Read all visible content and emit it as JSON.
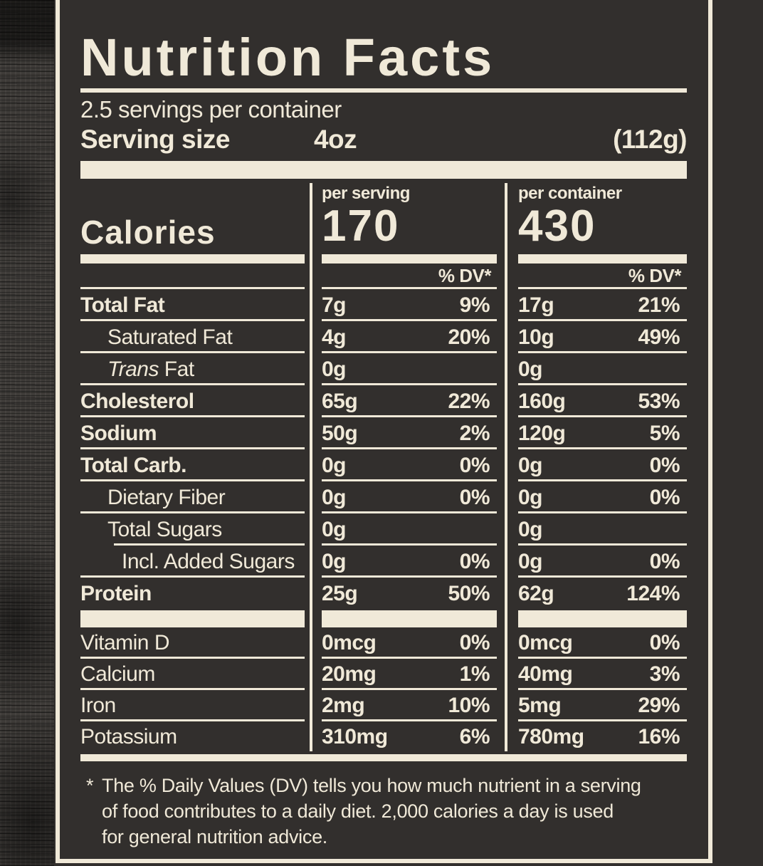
{
  "colors": {
    "background": "#322f2d",
    "cream": "#f0e9d8"
  },
  "header": {
    "title": "Nutrition Facts",
    "servings_per_container": "2.5 servings per container",
    "serving_size_label": "Serving size",
    "serving_size_value": "4oz",
    "serving_size_weight": "(112g)"
  },
  "calories": {
    "label": "Calories",
    "per_serving_label": "per serving",
    "per_serving_value": "170",
    "per_container_label": "per container",
    "per_container_value": "430",
    "dv_header_serving": "% DV*",
    "dv_header_container": "% DV*"
  },
  "nutrients": [
    {
      "name": "Total Fat",
      "serving": "7g",
      "serving_dv": "9%",
      "container": "17g",
      "container_dv": "21%"
    },
    {
      "name": "Saturated Fat",
      "serving": "4g",
      "serving_dv": "20%",
      "container": "10g",
      "container_dv": "49%"
    },
    {
      "name_italic": "Trans",
      "name": " Fat",
      "serving": "0g",
      "serving_dv": "",
      "container": "0g",
      "container_dv": ""
    },
    {
      "name": "Cholesterol",
      "serving": "65g",
      "serving_dv": "22%",
      "container": "160g",
      "container_dv": "53%"
    },
    {
      "name": "Sodium",
      "serving": "50g",
      "serving_dv": "2%",
      "container": "120g",
      "container_dv": "5%"
    },
    {
      "name": "Total Carb.",
      "serving": "0g",
      "serving_dv": "0%",
      "container": "0g",
      "container_dv": "0%"
    },
    {
      "name": "Dietary Fiber",
      "serving": "0g",
      "serving_dv": "0%",
      "container": "0g",
      "container_dv": "0%"
    },
    {
      "name": "Total Sugars",
      "serving": "0g",
      "serving_dv": "",
      "container": "0g",
      "container_dv": ""
    },
    {
      "name": "Incl. Added Sugars",
      "serving": "0g",
      "serving_dv": "0%",
      "container": "0g",
      "container_dv": "0%"
    },
    {
      "name": "Protein",
      "serving": "25g",
      "serving_dv": "50%",
      "container": "62g",
      "container_dv": "124%"
    }
  ],
  "vitamins": [
    {
      "name": "Vitamin D",
      "serving": "0mcg",
      "serving_dv": "0%",
      "container": "0mcg",
      "container_dv": "0%"
    },
    {
      "name": "Calcium",
      "serving": "20mg",
      "serving_dv": "1%",
      "container": "40mg",
      "container_dv": "3%"
    },
    {
      "name": "Iron",
      "serving": "2mg",
      "serving_dv": "10%",
      "container": "5mg",
      "container_dv": "29%"
    },
    {
      "name": "Potassium",
      "serving": "310mg",
      "serving_dv": "6%",
      "container": "780mg",
      "container_dv": "16%"
    }
  ],
  "footnote": {
    "marker": "*",
    "lines": [
      "The % Daily Values (DV) tells you how much nutrient in a serving",
      "of food contributes to a daily diet. 2,000 calories a day is used",
      "for general nutrition advice."
    ]
  }
}
